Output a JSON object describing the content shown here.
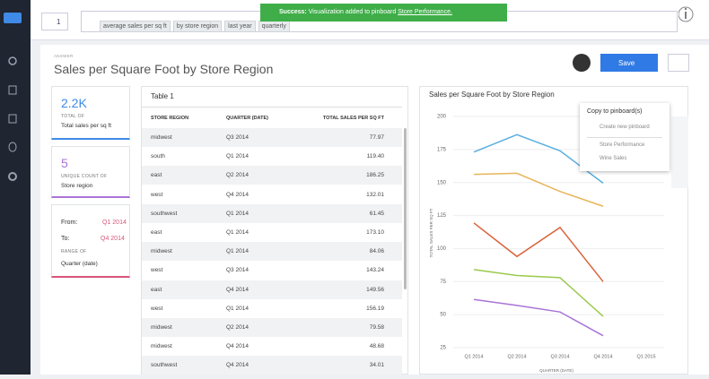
{
  "header": {
    "badge": "1",
    "tokens": [
      "average sales per sq ft",
      "by store region",
      "last year",
      "quarterly"
    ]
  },
  "toast": {
    "label": "Success:",
    "message": "Visualization added to pinboard",
    "link": "Store Performance."
  },
  "answer": {
    "label": "ANSWER",
    "title": "Sales per Square Foot by Store Region",
    "save": "Save"
  },
  "cards": [
    {
      "value": "2.2K",
      "caption": "TOTAL OF",
      "name": "Total sales per sq ft"
    },
    {
      "value": "5",
      "caption": "UNIQUE COUNT OF",
      "name": "Store region"
    }
  ],
  "range_card": {
    "from_label": "From:",
    "from": "Q1 2014",
    "to_label": "To:",
    "to": "Q4 2014",
    "caption": "RANGE OF",
    "name": "Quarter (date)"
  },
  "table": {
    "title": "Table 1",
    "columns": [
      "STORE REGION",
      "QUARTER (DATE)",
      "TOTAL SALES PER SQ FT"
    ],
    "rows": [
      [
        "midwest",
        "Q3 2014",
        "77.97"
      ],
      [
        "south",
        "Q1 2014",
        "119.40"
      ],
      [
        "east",
        "Q2 2014",
        "186.25"
      ],
      [
        "west",
        "Q4 2014",
        "132.01"
      ],
      [
        "southwest",
        "Q1 2014",
        "61.45"
      ],
      [
        "east",
        "Q1 2014",
        "173.10"
      ],
      [
        "midwest",
        "Q1 2014",
        "84.06"
      ],
      [
        "west",
        "Q3 2014",
        "143.24"
      ],
      [
        "east",
        "Q4 2014",
        "149.56"
      ],
      [
        "west",
        "Q1 2014",
        "156.19"
      ],
      [
        "midwest",
        "Q2 2014",
        "79.58"
      ],
      [
        "midwest",
        "Q4 2014",
        "48.68"
      ],
      [
        "southwest",
        "Q4 2014",
        "34.01"
      ]
    ]
  },
  "chart_data": {
    "type": "line",
    "title": "Sales per Square Foot by Store Region",
    "x_label": "QUARTER (DATE)",
    "y_label": "TOTAL SALES PER SQ FT",
    "categories": [
      "Q1 2014",
      "Q2 2014",
      "Q3 2014",
      "Q4 2014",
      "Q1 2015"
    ],
    "series": [
      {
        "color": "#5aaee0",
        "values": [
          173.1,
          186.25,
          174,
          149.56,
          null
        ]
      },
      {
        "color": "#e8b55a",
        "values": [
          156.19,
          157,
          143.24,
          132.01,
          null
        ]
      },
      {
        "color": "#d9643a",
        "values": [
          119.4,
          94,
          116,
          75,
          null
        ]
      },
      {
        "color": "#9bc94f",
        "values": [
          84.06,
          79.58,
          77.97,
          48.68,
          null
        ]
      },
      {
        "color": "#a974d6",
        "values": [
          61.45,
          57,
          52,
          34.01,
          null
        ]
      }
    ],
    "ylim": [
      25,
      200
    ],
    "yticks": [
      25,
      50,
      75,
      100,
      125,
      150,
      175,
      200
    ],
    "grid": true
  },
  "pinboard_menu": {
    "title": "Copy to pinboard(s)",
    "create": "Create new pinboard",
    "items": [
      "Store Performance",
      "Wine Sales"
    ]
  }
}
